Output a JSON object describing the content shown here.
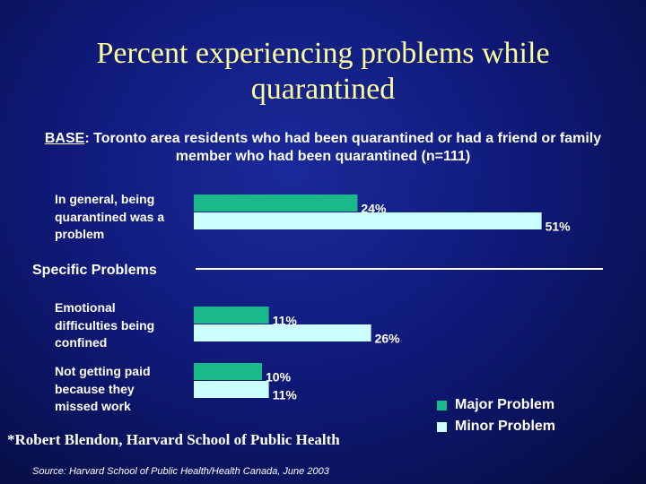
{
  "title_line1": "Percent experiencing problems while",
  "title_line2": "quarantined",
  "base_keyword": "BASE",
  "base_text": ": Toronto area residents who had been quarantined or had a friend or family member who had been quarantined (n=111)",
  "section_label": "Specific Problems",
  "credit": "*Robert Blendon, Harvard School of Public Health",
  "source": "Source: Harvard School of Public Health/Health Canada, June 2003",
  "chart_data": {
    "type": "bar",
    "orientation": "horizontal",
    "categories": [
      [
        "In general, being",
        "quarantined was a",
        "problem"
      ],
      [
        "Emotional",
        "difficulties being",
        "confined"
      ],
      [
        "Not getting paid",
        "because they",
        "missed work"
      ]
    ],
    "series": [
      {
        "name": "Major Problem",
        "values": [
          24,
          11,
          10
        ],
        "labels": [
          "24%",
          "11%",
          "10%"
        ],
        "color": "#19b98a"
      },
      {
        "name": "Minor Problem",
        "values": [
          51,
          26,
          11
        ],
        "labels": [
          "51%",
          "26%",
          "11%"
        ],
        "color": "#ccffff"
      }
    ],
    "unit": "%",
    "xlim": [
      0,
      60
    ],
    "legend_position": "bottom-right",
    "grid": false
  }
}
